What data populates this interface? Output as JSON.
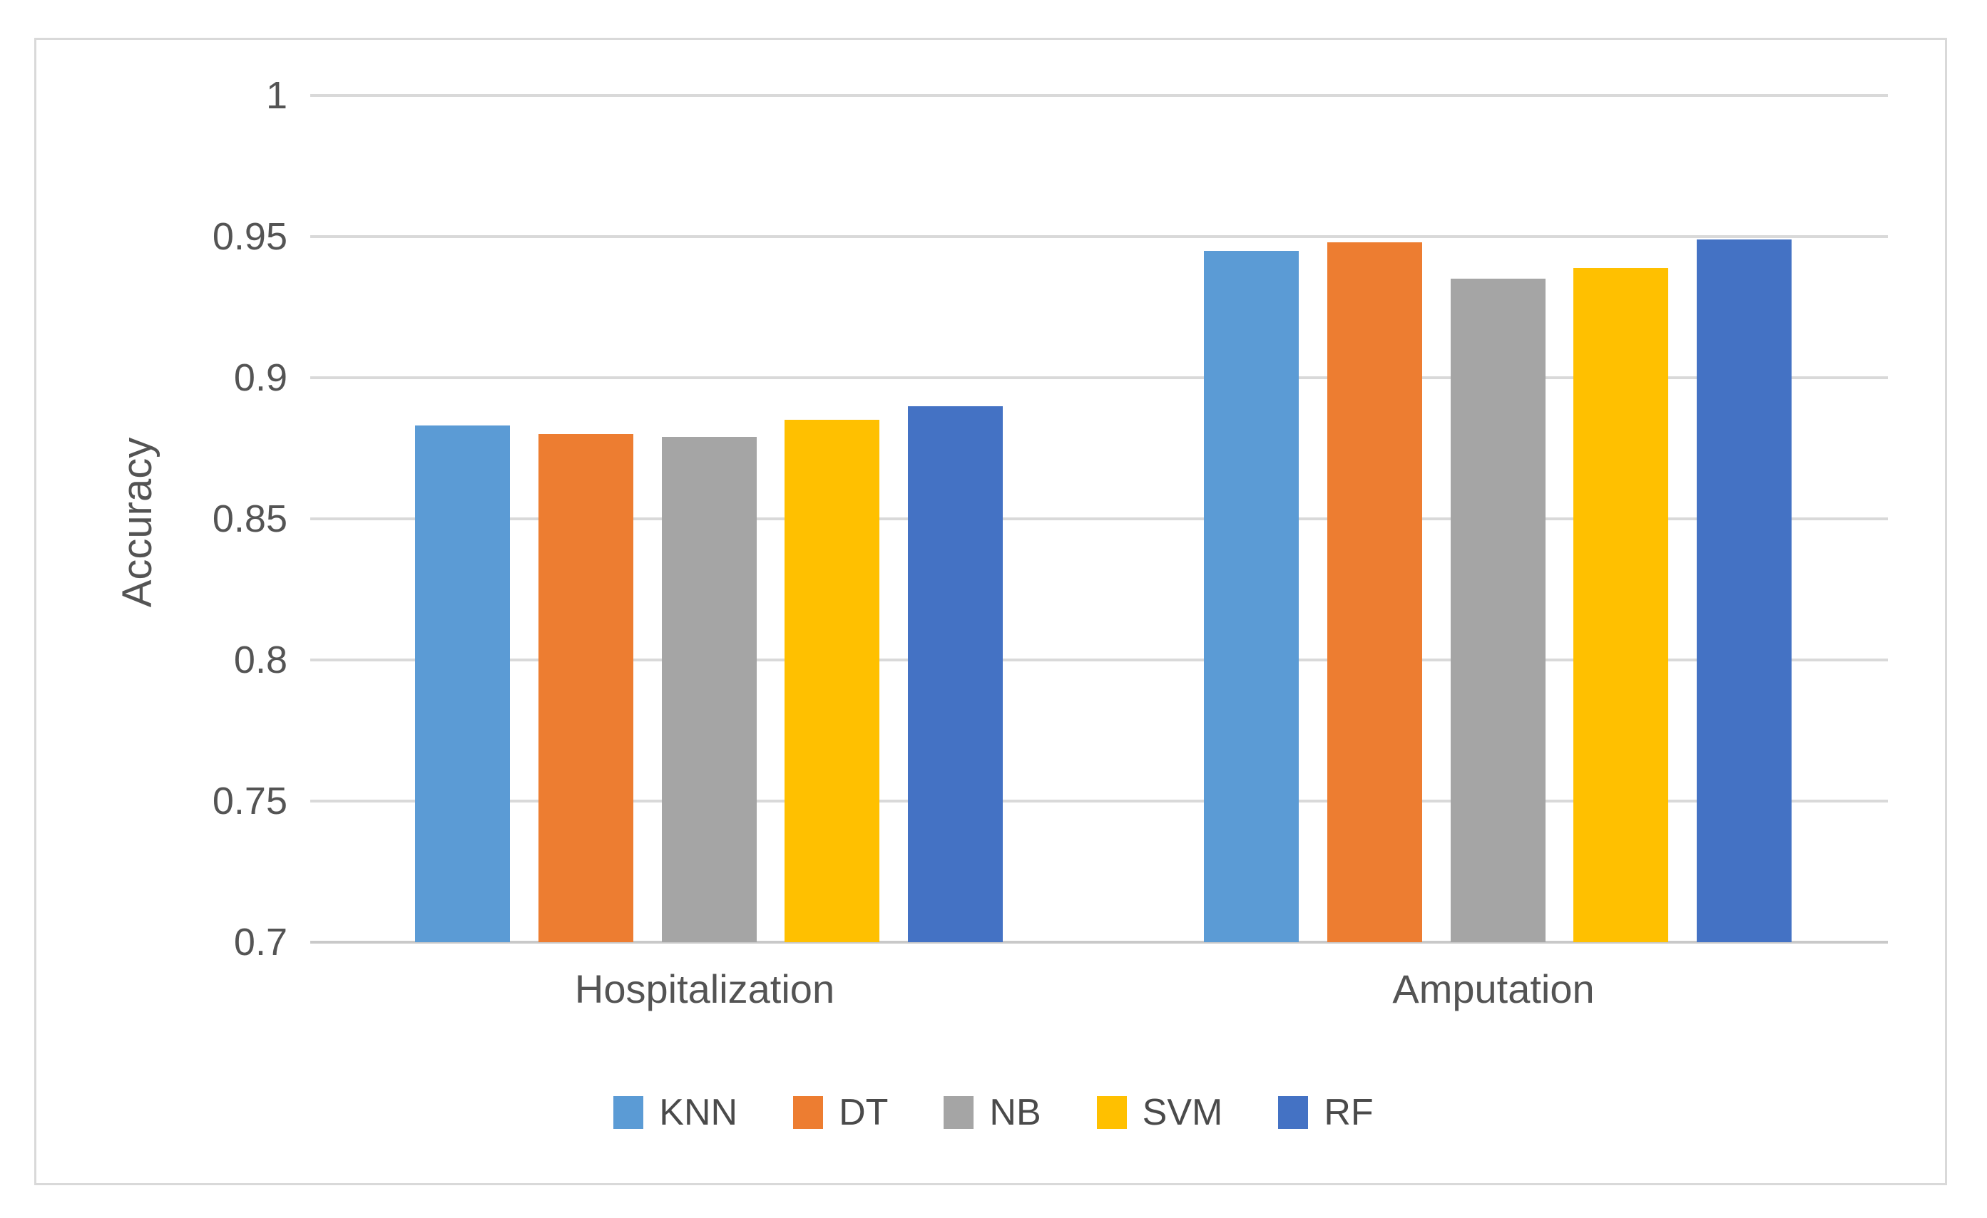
{
  "chart_data": {
    "type": "bar",
    "title": "",
    "categories": [
      "Hospitalization",
      "Amputation"
    ],
    "series": [
      {
        "name": "KNN",
        "color": "#5B9BD5",
        "values": [
          0.883,
          0.945
        ]
      },
      {
        "name": "DT",
        "color": "#ED7D31",
        "values": [
          0.88,
          0.948
        ]
      },
      {
        "name": "NB",
        "color": "#A5A5A5",
        "values": [
          0.879,
          0.935
        ]
      },
      {
        "name": "SVM",
        "color": "#FFC000",
        "values": [
          0.885,
          0.939
        ]
      },
      {
        "name": "RF",
        "color": "#4472C4",
        "values": [
          0.89,
          0.949
        ]
      }
    ],
    "xlabel": "",
    "ylabel": "Accuracy",
    "ylim": [
      0.7,
      1.0
    ],
    "yticks": [
      0.7,
      0.75,
      0.8,
      0.85,
      0.9,
      0.95,
      1
    ],
    "ytick_labels": [
      "0.7",
      "0.75",
      "0.8",
      "0.85",
      "0.9",
      "0.95",
      "1"
    ],
    "grid": true,
    "legend_position": "bottom",
    "gridline_color": "#D9D9D9",
    "axis_line_color": "#C9C9C9",
    "frame_border_color": "#D9D9D9",
    "text_color": "#545454",
    "background_color": "#FFFFFF"
  }
}
